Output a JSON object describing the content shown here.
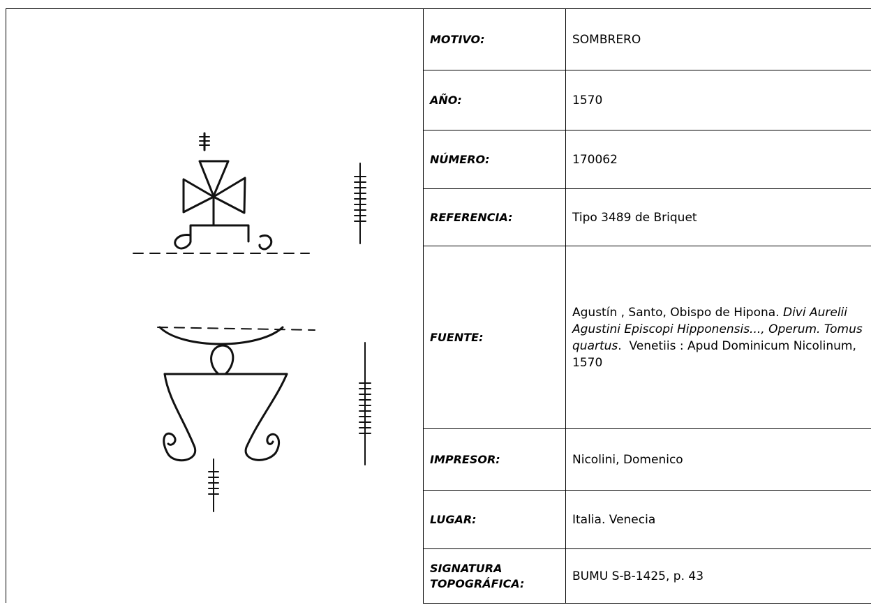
{
  "table": {
    "rows": [
      {
        "label": "MOTIVO:",
        "value": [
          {
            "text": "SOMBRERO",
            "italic": false
          }
        ]
      },
      {
        "label": "AÑO:",
        "value": [
          {
            "text": "1570",
            "italic": false
          }
        ]
      },
      {
        "label": "NÚMERO:",
        "value": [
          {
            "text": "170062",
            "italic": false
          }
        ]
      },
      {
        "label": "REFERENCIA:",
        "value": [
          {
            "text": "Tipo 3489 de Briquet",
            "italic": false
          }
        ]
      },
      {
        "label": "FUENTE:",
        "value": [
          {
            "text": "Agustín , Santo, Obispo de Hipona. ",
            "italic": false
          },
          {
            "text": "Divi Aurelii Agustini Episcopi Hipponensis..., Operum. Tomus quartus",
            "italic": true
          },
          {
            "text": ".  Venetiis : Apud Dominicum Nicolinum, 1570",
            "italic": false
          }
        ]
      },
      {
        "label": "IMPRESOR:",
        "value": [
          {
            "text": "Nicolini, Domenico",
            "italic": false
          }
        ]
      },
      {
        "label": "LUGAR:",
        "value": [
          {
            "text": "Italia. Venecia",
            "italic": false
          }
        ]
      },
      {
        "label": "SIGNATURA TOPOGRÁFICA:",
        "value": [
          {
            "text": "BUMU S-B-1425, p. 43",
            "italic": false
          }
        ]
      }
    ]
  }
}
